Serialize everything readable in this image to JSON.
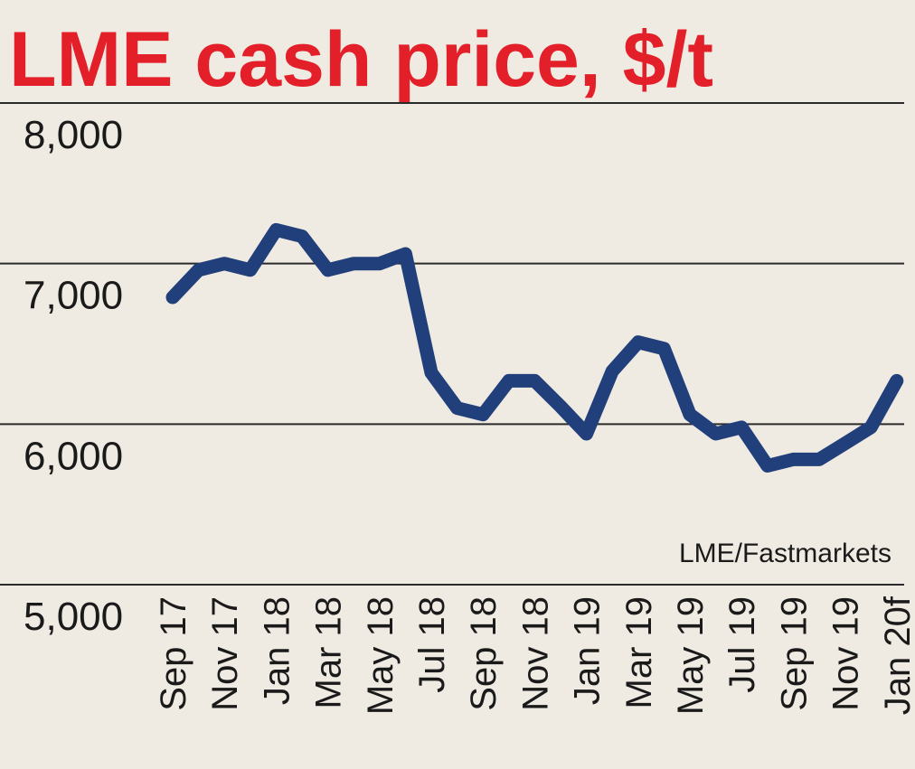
{
  "colors": {
    "background": "#f0ebe2",
    "title": "#e3202a",
    "line": "#213f7a",
    "grid": "#2a2a2a",
    "text": "#1a1a1a"
  },
  "chart_data": {
    "type": "line",
    "title": "LME cash price, $/t",
    "xlabel": "",
    "ylabel": "",
    "source": "LME/Fastmarkets",
    "ylim": [
      5000,
      8000
    ],
    "y_ticks": [
      "8,000",
      "7,000",
      "6,000",
      "5,000"
    ],
    "grid": true,
    "x_tick_labels": [
      "Sep 17",
      "Nov 17",
      "Jan 18",
      "Mar 18",
      "May 18",
      "Jul 18",
      "Sep 18",
      "Nov 18",
      "Jan 19",
      "Mar 19",
      "May 19",
      "Jul 19",
      "Sep 19",
      "Nov 19",
      "Jan 20f"
    ],
    "series": [
      {
        "x": [
          "Sep 17",
          "Oct 17",
          "Nov 17",
          "Dec 17",
          "Jan 18",
          "Feb 18",
          "Mar 18",
          "Apr 18",
          "May 18",
          "Jun 18",
          "Jul 18",
          "Aug 18",
          "Sep 18",
          "Oct 18",
          "Nov 18",
          "Dec 18",
          "Jan 19",
          "Feb 19",
          "Mar 19",
          "Apr 19",
          "May 19",
          "Jun 19",
          "Jul 19",
          "Aug 19",
          "Sep 19",
          "Oct 19",
          "Nov 19",
          "Dec 19",
          "Jan 20f"
        ],
        "values": [
          6790,
          6960,
          7000,
          6960,
          7210,
          7170,
          6960,
          7000,
          7000,
          7060,
          6320,
          6100,
          6060,
          6270,
          6270,
          6110,
          5940,
          6330,
          6510,
          6470,
          6060,
          5940,
          5980,
          5740,
          5780,
          5780,
          5880,
          5980,
          6270
        ]
      }
    ]
  }
}
